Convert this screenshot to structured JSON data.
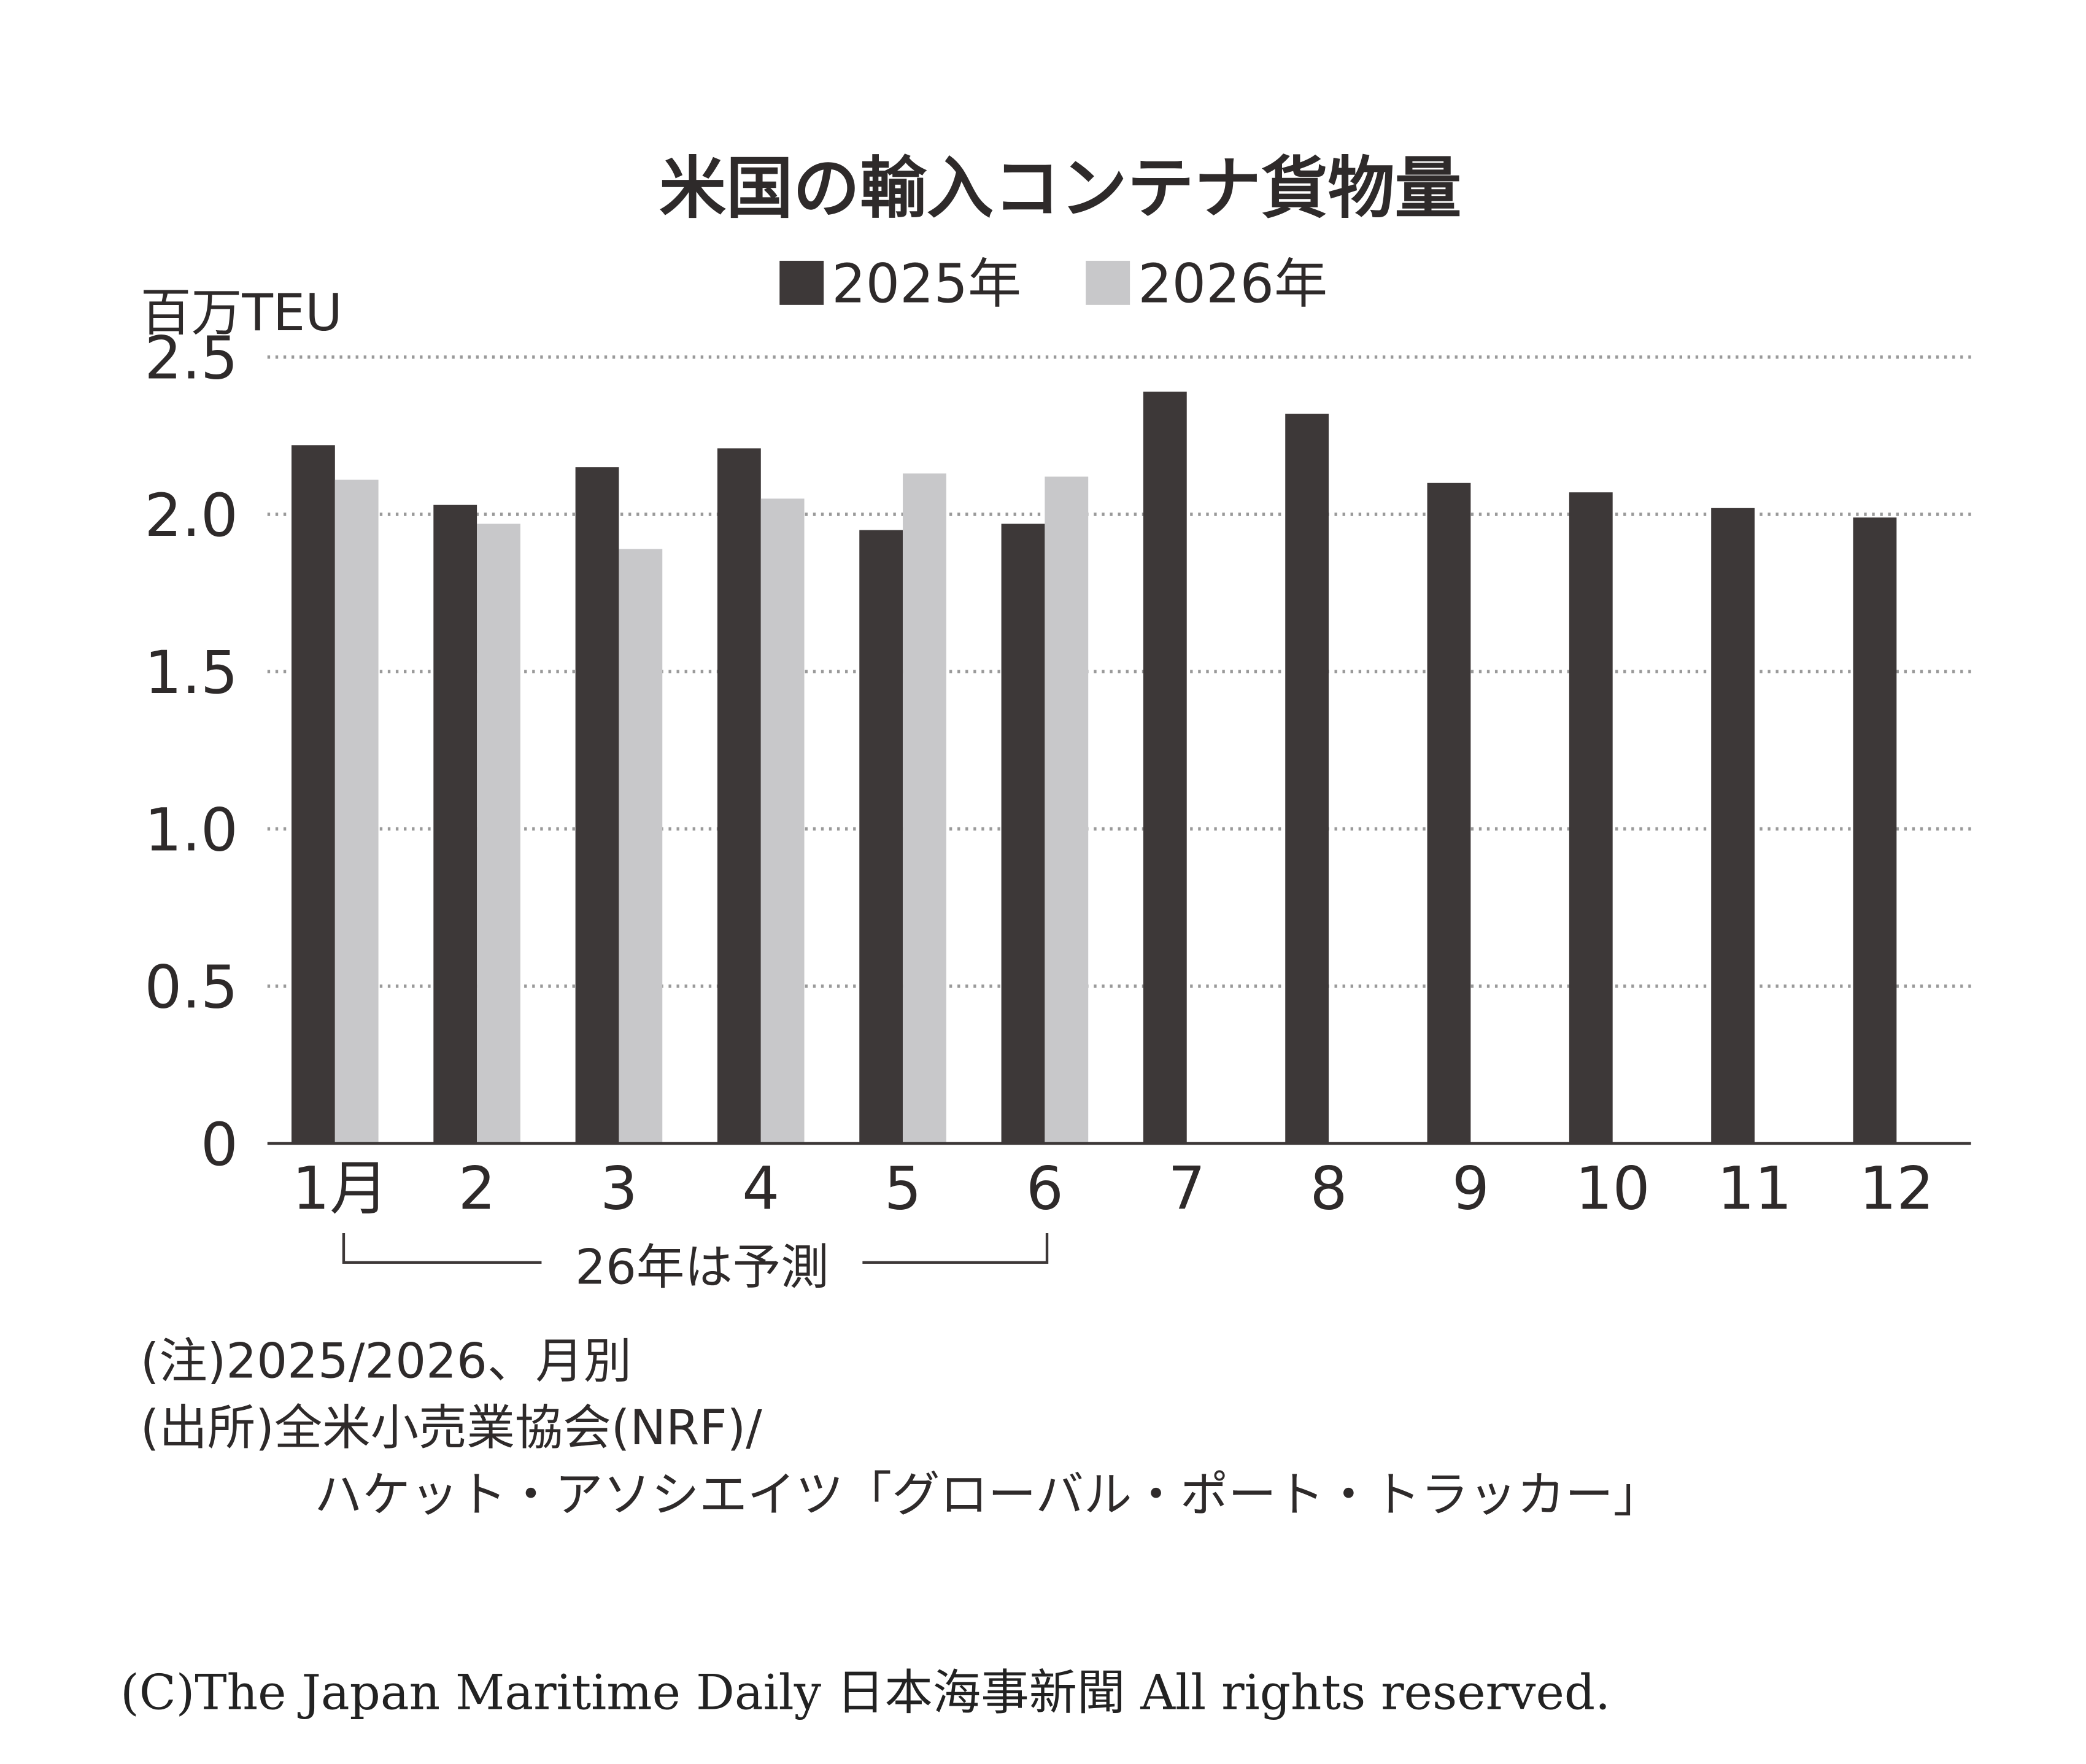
{
  "chart_data": {
    "type": "bar",
    "title": "米国の輸入コンテナ貨物量",
    "ylabel": "百万TEU",
    "xlabel": "",
    "ylim": [
      0,
      2.5
    ],
    "yticks": [
      "0",
      "0.5",
      "1.0",
      "1.5",
      "2.0",
      "2.5"
    ],
    "ytick_values": [
      0,
      0.5,
      1.0,
      1.5,
      2.0,
      2.5
    ],
    "grid": true,
    "legend_position": "top-center",
    "categories": [
      "1月",
      "2",
      "3",
      "4",
      "5",
      "6",
      "7",
      "8",
      "9",
      "10",
      "11",
      "12"
    ],
    "series": [
      {
        "name": "2025年",
        "color": "#3d3838",
        "values": [
          2.22,
          2.03,
          2.15,
          2.21,
          1.95,
          1.97,
          2.39,
          2.32,
          2.1,
          2.07,
          2.02,
          1.99
        ]
      },
      {
        "name": "2026年",
        "color": "#c8c8ca",
        "values": [
          2.11,
          1.97,
          1.89,
          2.05,
          2.13,
          2.12,
          null,
          null,
          null,
          null,
          null,
          null
        ]
      }
    ],
    "annotation": "26年は予測"
  },
  "notes": {
    "note": "(注)2025/2026、月別",
    "source_1": "(出所)全米小売業協会(NRF)/",
    "source_2": "ハケット・アソシエイツ「グローバル・ポート・トラッカー」"
  },
  "copyright": "(C)The Japan Maritime Daily 日本海事新聞 All rights reserved."
}
